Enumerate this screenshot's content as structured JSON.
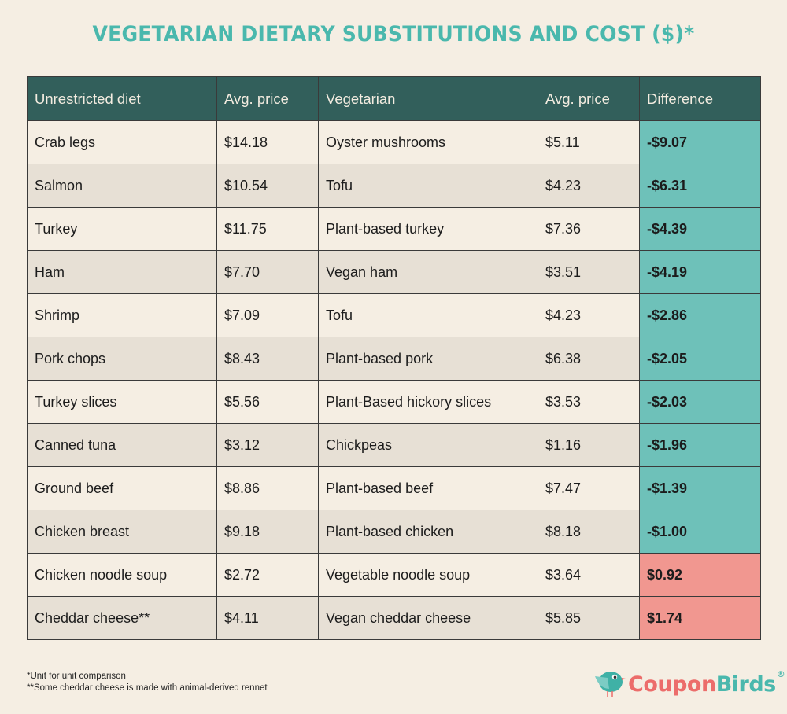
{
  "title": "VEGETARIAN DIETARY SUBSTITUTIONS AND COST ($)*",
  "table": {
    "headers": [
      "Unrestricted diet",
      "Avg. price",
      "Vegetarian",
      "Avg. price",
      "Difference"
    ],
    "rows": [
      {
        "unrestricted": "Crab legs",
        "unrestricted_price": "$14.18",
        "vegetarian": "Oyster mushrooms",
        "vegetarian_price": "$5.11",
        "difference": "-$9.07",
        "sign": "neg"
      },
      {
        "unrestricted": "Salmon",
        "unrestricted_price": "$10.54",
        "vegetarian": "Tofu",
        "vegetarian_price": "$4.23",
        "difference": "-$6.31",
        "sign": "neg"
      },
      {
        "unrestricted": "Turkey",
        "unrestricted_price": "$11.75",
        "vegetarian": "Plant-based turkey",
        "vegetarian_price": "$7.36",
        "difference": "-$4.39",
        "sign": "neg"
      },
      {
        "unrestricted": "Ham",
        "unrestricted_price": "$7.70",
        "vegetarian": "Vegan ham",
        "vegetarian_price": "$3.51",
        "difference": "-$4.19",
        "sign": "neg"
      },
      {
        "unrestricted": "Shrimp",
        "unrestricted_price": "$7.09",
        "vegetarian": "Tofu",
        "vegetarian_price": "$4.23",
        "difference": "-$2.86",
        "sign": "neg"
      },
      {
        "unrestricted": "Pork chops",
        "unrestricted_price": "$8.43",
        "vegetarian": "Plant-based pork",
        "vegetarian_price": "$6.38",
        "difference": "-$2.05",
        "sign": "neg"
      },
      {
        "unrestricted": "Turkey slices",
        "unrestricted_price": "$5.56",
        "vegetarian": "Plant-Based hickory slices",
        "vegetarian_price": "$3.53",
        "difference": "-$2.03",
        "sign": "neg"
      },
      {
        "unrestricted": "Canned tuna",
        "unrestricted_price": "$3.12",
        "vegetarian": "Chickpeas",
        "vegetarian_price": "$1.16",
        "difference": "-$1.96",
        "sign": "neg"
      },
      {
        "unrestricted": "Ground beef",
        "unrestricted_price": "$8.86",
        "vegetarian": "Plant-based beef",
        "vegetarian_price": "$7.47",
        "difference": "-$1.39",
        "sign": "neg"
      },
      {
        "unrestricted": "Chicken breast",
        "unrestricted_price": "$9.18",
        "vegetarian": "Plant-based chicken",
        "vegetarian_price": "$8.18",
        "difference": "-$1.00",
        "sign": "neg"
      },
      {
        "unrestricted": "Chicken noodle soup",
        "unrestricted_price": "$2.72",
        "vegetarian": "Vegetable noodle soup",
        "vegetarian_price": "$3.64",
        "difference": "$0.92",
        "sign": "pos"
      },
      {
        "unrestricted": "Cheddar cheese**",
        "unrestricted_price": "$4.11",
        "vegetarian": "Vegan cheddar cheese",
        "vegetarian_price": "$5.85",
        "difference": "$1.74",
        "sign": "pos"
      }
    ]
  },
  "footnotes": [
    "*Unit for unit comparison",
    "**Some cheddar cheese is made with animal-derived rennet"
  ],
  "logo": {
    "part1": "Coupon",
    "part2": "Birds",
    "reg": "®",
    "icon": "bird-icon"
  },
  "colors": {
    "title": "#4ab8ad",
    "header_bg": "#325f5b",
    "savings": "#6ec1b9",
    "extra_cost": "#f19790",
    "background": "#f5eee3"
  }
}
